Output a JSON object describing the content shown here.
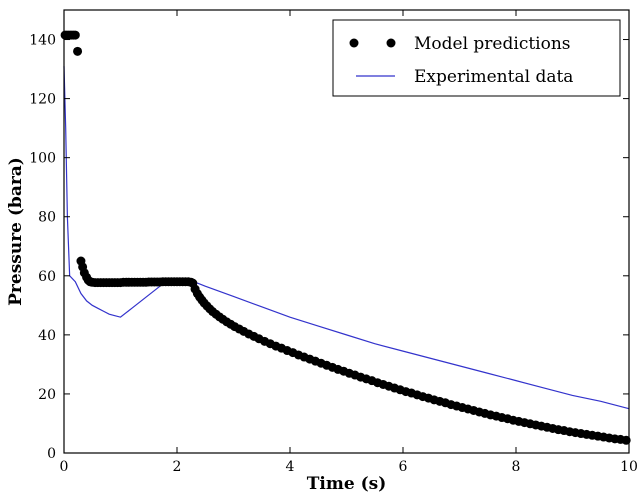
{
  "chart_data": {
    "type": "scatter",
    "xlabel": "Time (s)",
    "ylabel": "Pressure (bara)",
    "xlim": [
      0,
      10
    ],
    "ylim": [
      0,
      150
    ],
    "xticks": [
      "0",
      "2",
      "4",
      "6",
      "8",
      "10"
    ],
    "yticks": [
      "0",
      "20",
      "40",
      "60",
      "80",
      "100",
      "120",
      "140"
    ],
    "grid": false,
    "legend": "top-right",
    "colors": {
      "model": "#000000",
      "experimental": "#3333cc"
    },
    "series": [
      {
        "name": "Model predictions",
        "kind": "markers",
        "x": [
          0.02,
          0.05,
          0.08,
          0.11,
          0.14,
          0.17,
          0.2,
          0.24,
          0.3,
          0.33,
          0.36,
          0.4,
          0.43,
          0.46,
          0.5,
          0.55,
          0.6,
          0.65,
          0.7,
          0.75,
          0.8,
          0.85,
          0.9,
          0.95,
          1.0,
          1.05,
          1.1,
          1.15,
          1.2,
          1.25,
          1.3,
          1.35,
          1.4,
          1.45,
          1.5,
          1.55,
          1.6,
          1.65,
          1.7,
          1.75,
          1.8,
          1.85,
          1.9,
          1.95,
          2.0,
          2.05,
          2.1,
          2.15,
          2.2,
          2.25,
          2.28,
          2.32,
          2.36,
          2.4,
          2.44,
          2.48,
          2.53,
          2.58,
          2.63,
          2.69,
          2.75,
          2.81,
          2.88,
          2.95,
          3.02,
          3.1,
          3.18,
          3.27,
          3.36,
          3.45,
          3.55,
          3.65,
          3.75,
          3.85,
          3.95,
          4.05,
          4.15,
          4.25,
          4.35,
          4.45,
          4.55,
          4.65,
          4.75,
          4.85,
          4.95,
          5.05,
          5.15,
          5.25,
          5.35,
          5.45,
          5.55,
          5.65,
          5.75,
          5.85,
          5.95,
          6.05,
          6.15,
          6.25,
          6.35,
          6.45,
          6.55,
          6.65,
          6.75,
          6.85,
          6.95,
          7.05,
          7.15,
          7.25,
          7.35,
          7.45,
          7.55,
          7.65,
          7.75,
          7.85,
          7.95,
          8.05,
          8.15,
          8.25,
          8.35,
          8.45,
          8.55,
          8.65,
          8.75,
          8.85,
          8.95,
          9.05,
          9.15,
          9.25,
          9.35,
          9.45,
          9.55,
          9.65,
          9.75,
          9.85,
          9.95
        ],
        "y": [
          141.5,
          141.5,
          141.5,
          141.5,
          141.5,
          141.5,
          141.5,
          136,
          65,
          63,
          61,
          59.5,
          58.5,
          58,
          57.8,
          57.7,
          57.7,
          57.7,
          57.7,
          57.7,
          57.7,
          57.7,
          57.7,
          57.7,
          57.7,
          57.8,
          57.8,
          57.8,
          57.8,
          57.8,
          57.8,
          57.8,
          57.8,
          57.8,
          57.9,
          57.9,
          57.9,
          57.9,
          57.9,
          58,
          58,
          58,
          58,
          58,
          58,
          58,
          58,
          58,
          58,
          57.8,
          57.5,
          55.5,
          54,
          52.8,
          51.8,
          50.8,
          49.8,
          48.8,
          47.9,
          47,
          46.1,
          45.3,
          44.4,
          43.6,
          42.8,
          42,
          41.2,
          40.3,
          39.5,
          38.7,
          37.8,
          37,
          36.2,
          35.5,
          34.7,
          34,
          33.2,
          32.5,
          31.8,
          31.1,
          30.4,
          29.7,
          29,
          28.3,
          27.7,
          27,
          26.4,
          25.7,
          25.1,
          24.5,
          23.8,
          23.2,
          22.6,
          22,
          21.4,
          20.8,
          20.3,
          19.7,
          19.1,
          18.6,
          18,
          17.5,
          17,
          16.4,
          15.9,
          15.4,
          14.9,
          14.4,
          13.9,
          13.4,
          12.9,
          12.5,
          12,
          11.6,
          11.1,
          10.7,
          10.3,
          9.9,
          9.5,
          9.1,
          8.7,
          8.3,
          7.9,
          7.6,
          7.2,
          6.9,
          6.6,
          6.3,
          6,
          5.7,
          5.4,
          5.1,
          4.8,
          4.6,
          4.3
        ]
      },
      {
        "name": "Experimental data",
        "kind": "line",
        "x": [
          0,
          0.03,
          0.06,
          0.1,
          0.2,
          0.3,
          0.4,
          0.5,
          0.6,
          0.7,
          0.8,
          0.9,
          1.0,
          1.2,
          1.4,
          1.6,
          1.8,
          2.0,
          2.1,
          2.2,
          2.3,
          2.5,
          3.0,
          3.5,
          4.0,
          4.5,
          5.0,
          5.5,
          6.0,
          6.5,
          7.0,
          7.5,
          8.0,
          8.5,
          9.0,
          9.5,
          10.0
        ],
        "y": [
          131,
          110,
          80,
          60,
          58,
          54,
          51.5,
          50,
          49,
          48,
          47,
          46.5,
          46,
          49,
          52,
          55,
          58,
          58.5,
          58.5,
          58.5,
          58,
          56.5,
          53,
          49.5,
          46,
          43,
          40,
          37,
          34.5,
          32,
          29.5,
          27,
          24.5,
          22,
          19.5,
          17.5,
          15
        ]
      }
    ]
  }
}
